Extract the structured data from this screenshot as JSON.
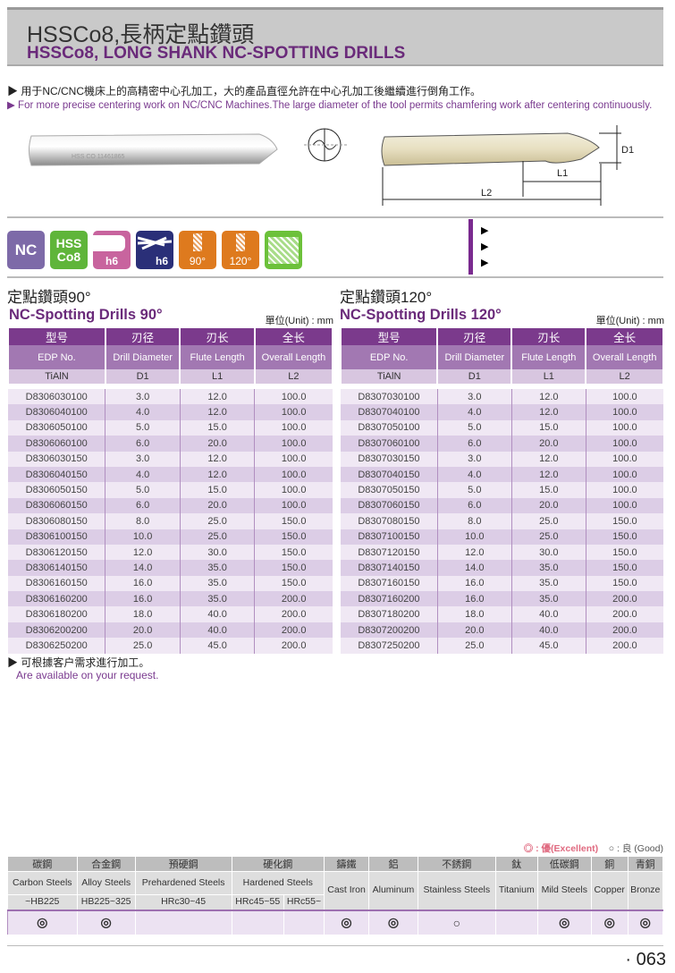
{
  "header": {
    "title_cn": "HSSCo8,長柄定點鑽頭",
    "title_en": "HSSCo8, LONG SHANK NC-SPOTTING DRILLS"
  },
  "description": {
    "cn": "▶ 用于NC/CNC機床上的高精密中心孔加工，大的產品直徑允許在中心孔加工後繼續進行倒角工作。",
    "en": "▶ For more precise centering work on NC/CNC Machines.The large diameter of the tool permits chamfering work after centering continuously."
  },
  "drawing": {
    "d1": "D1",
    "l1": "L1",
    "l2": "L2",
    "engraving": "HSS CO 11461865"
  },
  "icons": [
    {
      "name": "nc",
      "label": "NC",
      "color": "#7d6aa8"
    },
    {
      "name": "hss-co8",
      "label1": "HSS",
      "label2": "Co8",
      "color": "#5fb53a"
    },
    {
      "name": "shank-h6",
      "label": "h6",
      "color": "#c8649e"
    },
    {
      "name": "drill-h6",
      "label": "h6",
      "color": "#2a2f78"
    },
    {
      "name": "angle-90",
      "label": "90°",
      "color": "#de7a1e"
    },
    {
      "name": "angle-120",
      "label": "120°",
      "color": "#de7a1e"
    },
    {
      "name": "spotting",
      "color": "#6cc13a"
    }
  ],
  "tables": [
    {
      "title_cn": "定點鑽頭90°",
      "title_en": "NC-Spotting Drills 90°",
      "unit": "單位(Unit) : mm",
      "headers_cn": [
        "型号",
        "刃径",
        "刃长",
        "全长"
      ],
      "headers_en": [
        "EDP No.",
        "Drill Diameter",
        "Flute Length",
        "Overall Length"
      ],
      "headers_sym": [
        "TiAlN",
        "D1",
        "L1",
        "L2"
      ],
      "rows": [
        [
          "D8306030100",
          "3.0",
          "12.0",
          "100.0"
        ],
        [
          "D8306040100",
          "4.0",
          "12.0",
          "100.0"
        ],
        [
          "D8306050100",
          "5.0",
          "15.0",
          "100.0"
        ],
        [
          "D8306060100",
          "6.0",
          "20.0",
          "100.0"
        ],
        [
          "D8306030150",
          "3.0",
          "12.0",
          "100.0"
        ],
        [
          "D8306040150",
          "4.0",
          "12.0",
          "100.0"
        ],
        [
          "D8306050150",
          "5.0",
          "15.0",
          "100.0"
        ],
        [
          "D8306060150",
          "6.0",
          "20.0",
          "100.0"
        ],
        [
          "D8306080150",
          "8.0",
          "25.0",
          "150.0"
        ],
        [
          "D8306100150",
          "10.0",
          "25.0",
          "150.0"
        ],
        [
          "D8306120150",
          "12.0",
          "30.0",
          "150.0"
        ],
        [
          "D8306140150",
          "14.0",
          "35.0",
          "150.0"
        ],
        [
          "D8306160150",
          "16.0",
          "35.0",
          "150.0"
        ],
        [
          "D8306160200",
          "16.0",
          "35.0",
          "200.0"
        ],
        [
          "D8306180200",
          "18.0",
          "40.0",
          "200.0"
        ],
        [
          "D8306200200",
          "20.0",
          "40.0",
          "200.0"
        ],
        [
          "D8306250200",
          "25.0",
          "45.0",
          "200.0"
        ]
      ]
    },
    {
      "title_cn": "定點鑽頭120°",
      "title_en": "NC-Spotting Drills 120°",
      "unit": "單位(Unit) : mm",
      "headers_cn": [
        "型号",
        "刃径",
        "刃长",
        "全长"
      ],
      "headers_en": [
        "EDP No.",
        "Drill Diameter",
        "Flute Length",
        "Overall Length"
      ],
      "headers_sym": [
        "TiAlN",
        "D1",
        "L1",
        "L2"
      ],
      "rows": [
        [
          "D8307030100",
          "3.0",
          "12.0",
          "100.0"
        ],
        [
          "D8307040100",
          "4.0",
          "12.0",
          "100.0"
        ],
        [
          "D8307050100",
          "5.0",
          "15.0",
          "100.0"
        ],
        [
          "D8307060100",
          "6.0",
          "20.0",
          "100.0"
        ],
        [
          "D8307030150",
          "3.0",
          "12.0",
          "100.0"
        ],
        [
          "D8307040150",
          "4.0",
          "12.0",
          "100.0"
        ],
        [
          "D8307050150",
          "5.0",
          "15.0",
          "100.0"
        ],
        [
          "D8307060150",
          "6.0",
          "20.0",
          "100.0"
        ],
        [
          "D8307080150",
          "8.0",
          "25.0",
          "150.0"
        ],
        [
          "D8307100150",
          "10.0",
          "25.0",
          "150.0"
        ],
        [
          "D8307120150",
          "12.0",
          "30.0",
          "150.0"
        ],
        [
          "D8307140150",
          "14.0",
          "35.0",
          "150.0"
        ],
        [
          "D8307160150",
          "16.0",
          "35.0",
          "150.0"
        ],
        [
          "D8307160200",
          "16.0",
          "35.0",
          "200.0"
        ],
        [
          "D8307180200",
          "18.0",
          "40.0",
          "200.0"
        ],
        [
          "D8307200200",
          "20.0",
          "40.0",
          "200.0"
        ],
        [
          "D8307250200",
          "25.0",
          "45.0",
          "200.0"
        ]
      ]
    }
  ],
  "note": {
    "cn": "▶ 可根據客户需求進行加工。",
    "en": "Are available on your request."
  },
  "materials": {
    "legend": {
      "excellent": "◎ : 優(Excellent)",
      "good": "○ : 良 (Good)"
    },
    "cn": [
      "碳鋼",
      "合金鋼",
      "預硬鋼",
      "硬化鋼",
      "鑄鐵",
      "鋁",
      "不銹鋼",
      "鈦",
      "低碳鋼",
      "銅",
      "青銅"
    ],
    "en": [
      "Carbon Steels",
      "Alloy Steels",
      "Prehardened Steels",
      "Hardened Steels",
      "Cast Iron",
      "Aluminum",
      "Stainless Steels",
      "Titanium",
      "Mild Steels",
      "Copper",
      "Bronze"
    ],
    "hardness": [
      "~HB225",
      "HB225~325",
      "HRc30~45",
      "HRc45~55",
      "HRc55~"
    ],
    "ratings": [
      "◎",
      "◎",
      "",
      "",
      "",
      "◎",
      "◎",
      "○",
      "",
      "◎",
      "◎",
      "◎"
    ]
  },
  "page_number": "· 063"
}
